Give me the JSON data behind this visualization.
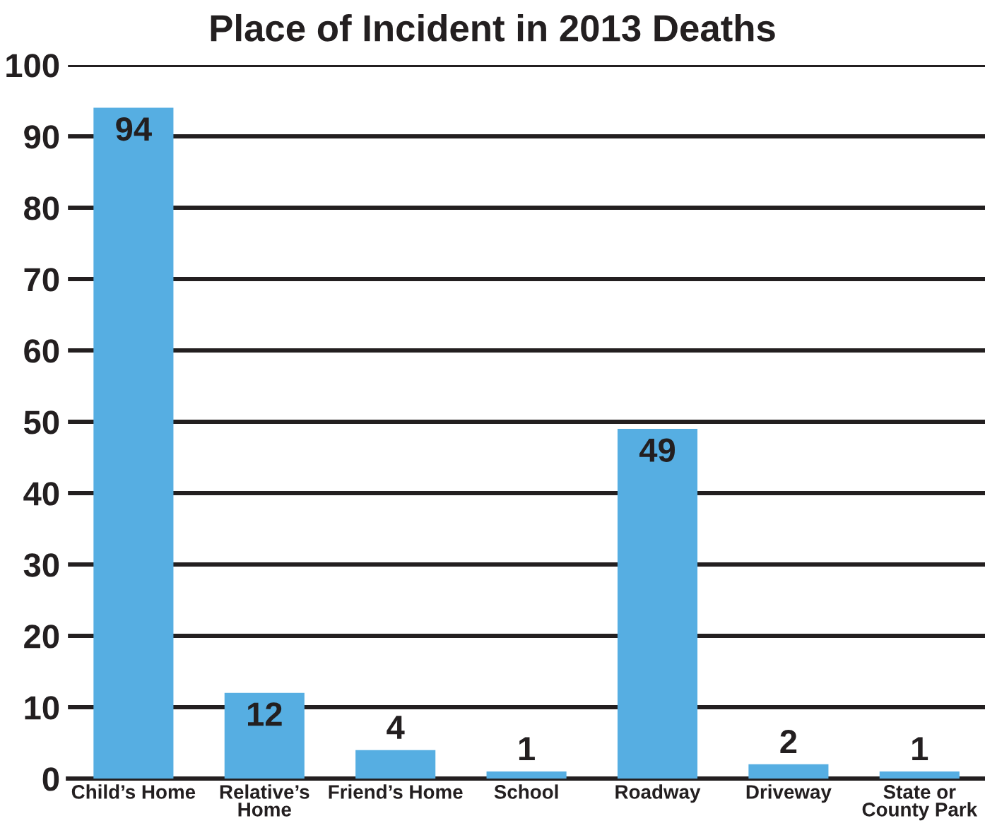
{
  "chart_data": {
    "type": "bar",
    "title": "Place of Incident in 2013 Deaths",
    "categories": [
      "Child’s Home",
      "Relative’s\nHome",
      "Friend’s Home",
      "School",
      "Roadway",
      "Driveway",
      "State or\nCounty Park"
    ],
    "values": [
      94,
      12,
      4,
      1,
      49,
      2,
      1
    ],
    "color": "#56aee2",
    "ylim": [
      0,
      100
    ],
    "yticks": [
      0,
      10,
      20,
      30,
      40,
      50,
      60,
      70,
      80,
      90,
      100
    ],
    "grid": "y",
    "legend": false,
    "data_labels": true
  }
}
